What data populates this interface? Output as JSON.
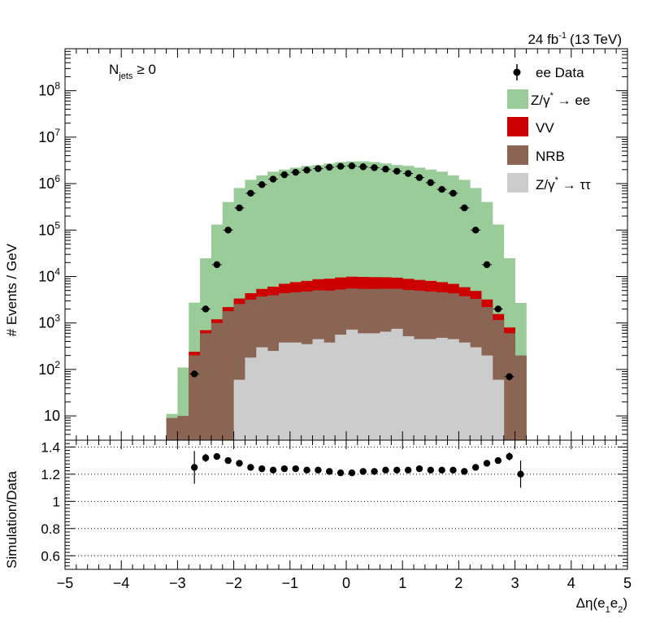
{
  "chart_data": [
    {
      "type": "bar",
      "stacked": true,
      "log_y": true,
      "lumi_label": "24 fb",
      "lumi_exp": "-1",
      "lumi_energy": "(13 TeV)",
      "selection": {
        "base": "N",
        "sub": "jets",
        "rest": "≥ 0"
      },
      "ylabel": "# Events / GeV",
      "ylim": [
        3,
        800000000
      ],
      "y_tick_labels": [
        {
          "value": 10,
          "base": "10",
          "exp": ""
        },
        {
          "value": 100,
          "base": "10",
          "exp": "2"
        },
        {
          "value": 1000,
          "base": "10",
          "exp": "3"
        },
        {
          "value": 10000,
          "base": "10",
          "exp": "4"
        },
        {
          "value": 100000,
          "base": "10",
          "exp": "5"
        },
        {
          "value": 1000000,
          "base": "10",
          "exp": "6"
        },
        {
          "value": 10000000,
          "base": "10",
          "exp": "7"
        },
        {
          "value": 100000000,
          "base": "10",
          "exp": "8"
        }
      ],
      "xlim": [
        -5,
        5
      ],
      "bin_width": 0.2,
      "bin_edges_start": -3.2,
      "legend_position": "top-right",
      "legend": [
        {
          "kind": "marker",
          "label": "ee Data"
        },
        {
          "kind": "box",
          "color": "#99cc99",
          "text": "Z/γ",
          "sup": "*",
          "tail": " → ee"
        },
        {
          "kind": "box",
          "color": "#cc0000",
          "text": "VV",
          "sup": "",
          "tail": ""
        },
        {
          "kind": "box",
          "color": "#8b6553",
          "text": "NRB",
          "sup": "",
          "tail": ""
        },
        {
          "kind": "box",
          "color": "#cccccc",
          "text": "Z/γ",
          "sup": "*",
          "tail": " → ττ"
        }
      ],
      "series": [
        {
          "name": "Z/γ* → ττ",
          "color": "#cccccc",
          "values": [
            0,
            0,
            0,
            0,
            0,
            0,
            60,
            180,
            300,
            250,
            380,
            380,
            350,
            450,
            380,
            560,
            720,
            600,
            600,
            650,
            750,
            520,
            450,
            450,
            480,
            450,
            380,
            300,
            200,
            60,
            0,
            0
          ]
        },
        {
          "name": "NRB",
          "color": "#8b6553",
          "values": [
            9,
            10,
            200,
            600,
            1000,
            1800,
            2500,
            3000,
            3400,
            3700,
            4000,
            4200,
            4400,
            4600,
            4600,
            4700,
            4800,
            4800,
            4800,
            4800,
            4700,
            4600,
            4500,
            4300,
            4100,
            3900,
            3400,
            3000,
            2000,
            1100,
            600,
            200
          ]
        },
        {
          "name": "VV",
          "color": "#cc0000",
          "values": [
            0,
            0,
            40,
            100,
            200,
            400,
            800,
            1200,
            1700,
            2100,
            2600,
            3000,
            3300,
            3700,
            4000,
            4300,
            4400,
            4400,
            4300,
            4200,
            4000,
            3800,
            3500,
            3300,
            3000,
            2600,
            2100,
            1600,
            1000,
            400,
            200,
            0
          ]
        },
        {
          "name": "Z/γ* → ee",
          "color": "#99cc99",
          "values": [
            2,
            100,
            2500,
            24000,
            130000,
            400000,
            800000,
            1200000,
            1500000,
            1800000,
            2000000,
            2200000,
            2400000,
            2500000,
            2700000,
            2900000,
            3000000,
            3000000,
            2900000,
            2700000,
            2500000,
            2400000,
            2200000,
            2000000,
            1800000,
            1500000,
            1200000,
            800000,
            400000,
            130000,
            24000,
            2500
          ]
        }
      ],
      "data_points": [
        {
          "x": -2.7,
          "y": 80,
          "err": 12
        },
        {
          "x": -2.5,
          "y": 2000,
          "err": 60
        },
        {
          "x": -2.3,
          "y": 18000
        },
        {
          "x": -2.1,
          "y": 100000
        },
        {
          "x": -1.9,
          "y": 300000
        },
        {
          "x": -1.7,
          "y": 620000
        },
        {
          "x": -1.5,
          "y": 950000
        },
        {
          "x": -1.3,
          "y": 1250000
        },
        {
          "x": -1.1,
          "y": 1550000
        },
        {
          "x": -0.9,
          "y": 1750000
        },
        {
          "x": -0.7,
          "y": 1950000
        },
        {
          "x": -0.5,
          "y": 2100000
        },
        {
          "x": -0.3,
          "y": 2250000
        },
        {
          "x": -0.1,
          "y": 2350000
        },
        {
          "x": 0.1,
          "y": 2400000
        },
        {
          "x": 0.3,
          "y": 2300000
        },
        {
          "x": 0.5,
          "y": 2200000
        },
        {
          "x": 0.7,
          "y": 2050000
        },
        {
          "x": 0.9,
          "y": 1850000
        },
        {
          "x": 1.1,
          "y": 1650000
        },
        {
          "x": 1.3,
          "y": 1350000
        },
        {
          "x": 1.5,
          "y": 1050000
        },
        {
          "x": 1.7,
          "y": 750000
        },
        {
          "x": 1.9,
          "y": 620000
        },
        {
          "x": 2.1,
          "y": 300000
        },
        {
          "x": 2.3,
          "y": 100000
        },
        {
          "x": 2.5,
          "y": 18000
        },
        {
          "x": 2.7,
          "y": 2000,
          "err": 60
        },
        {
          "x": 2.9,
          "y": 70,
          "err": 12
        }
      ]
    },
    {
      "type": "scatter",
      "ylabel": "Simulation/Data",
      "xlabel_base": "Δη(e",
      "xlabel_sub1": "1",
      "xlabel_mid": "e",
      "xlabel_sub2": "2",
      "xlabel_tail": ")",
      "xlim": [
        -5,
        5
      ],
      "ylim": [
        0.5,
        1.45
      ],
      "grid_lines": [
        0.6,
        0.8,
        1.0,
        1.2,
        1.4
      ],
      "y_tick_labels": [
        "0.6",
        "0.8",
        "1",
        "1.2",
        "1.4"
      ],
      "x_tick_labels": [
        "−5",
        "−4",
        "−3",
        "−2",
        "−1",
        "0",
        "1",
        "2",
        "3",
        "4",
        "5"
      ],
      "points": [
        {
          "x": -2.7,
          "y": 1.25,
          "err": 0.12
        },
        {
          "x": -2.5,
          "y": 1.32,
          "err": 0.03
        },
        {
          "x": -2.3,
          "y": 1.33
        },
        {
          "x": -2.1,
          "y": 1.3
        },
        {
          "x": -1.9,
          "y": 1.28
        },
        {
          "x": -1.7,
          "y": 1.25
        },
        {
          "x": -1.5,
          "y": 1.24
        },
        {
          "x": -1.3,
          "y": 1.23
        },
        {
          "x": -1.1,
          "y": 1.24
        },
        {
          "x": -0.9,
          "y": 1.24
        },
        {
          "x": -0.7,
          "y": 1.23
        },
        {
          "x": -0.5,
          "y": 1.23
        },
        {
          "x": -0.3,
          "y": 1.22
        },
        {
          "x": -0.1,
          "y": 1.21
        },
        {
          "x": 0.1,
          "y": 1.21
        },
        {
          "x": 0.3,
          "y": 1.22
        },
        {
          "x": 0.5,
          "y": 1.22
        },
        {
          "x": 0.7,
          "y": 1.23
        },
        {
          "x": 0.9,
          "y": 1.23
        },
        {
          "x": 1.1,
          "y": 1.23
        },
        {
          "x": 1.3,
          "y": 1.24
        },
        {
          "x": 1.5,
          "y": 1.23
        },
        {
          "x": 1.7,
          "y": 1.23
        },
        {
          "x": 1.9,
          "y": 1.23
        },
        {
          "x": 2.1,
          "y": 1.22
        },
        {
          "x": 2.3,
          "y": 1.25
        },
        {
          "x": 2.5,
          "y": 1.28
        },
        {
          "x": 2.7,
          "y": 1.3
        },
        {
          "x": 2.9,
          "y": 1.33,
          "err": 0.03
        },
        {
          "x": 3.1,
          "y": 1.2,
          "err": 0.1
        }
      ]
    }
  ]
}
